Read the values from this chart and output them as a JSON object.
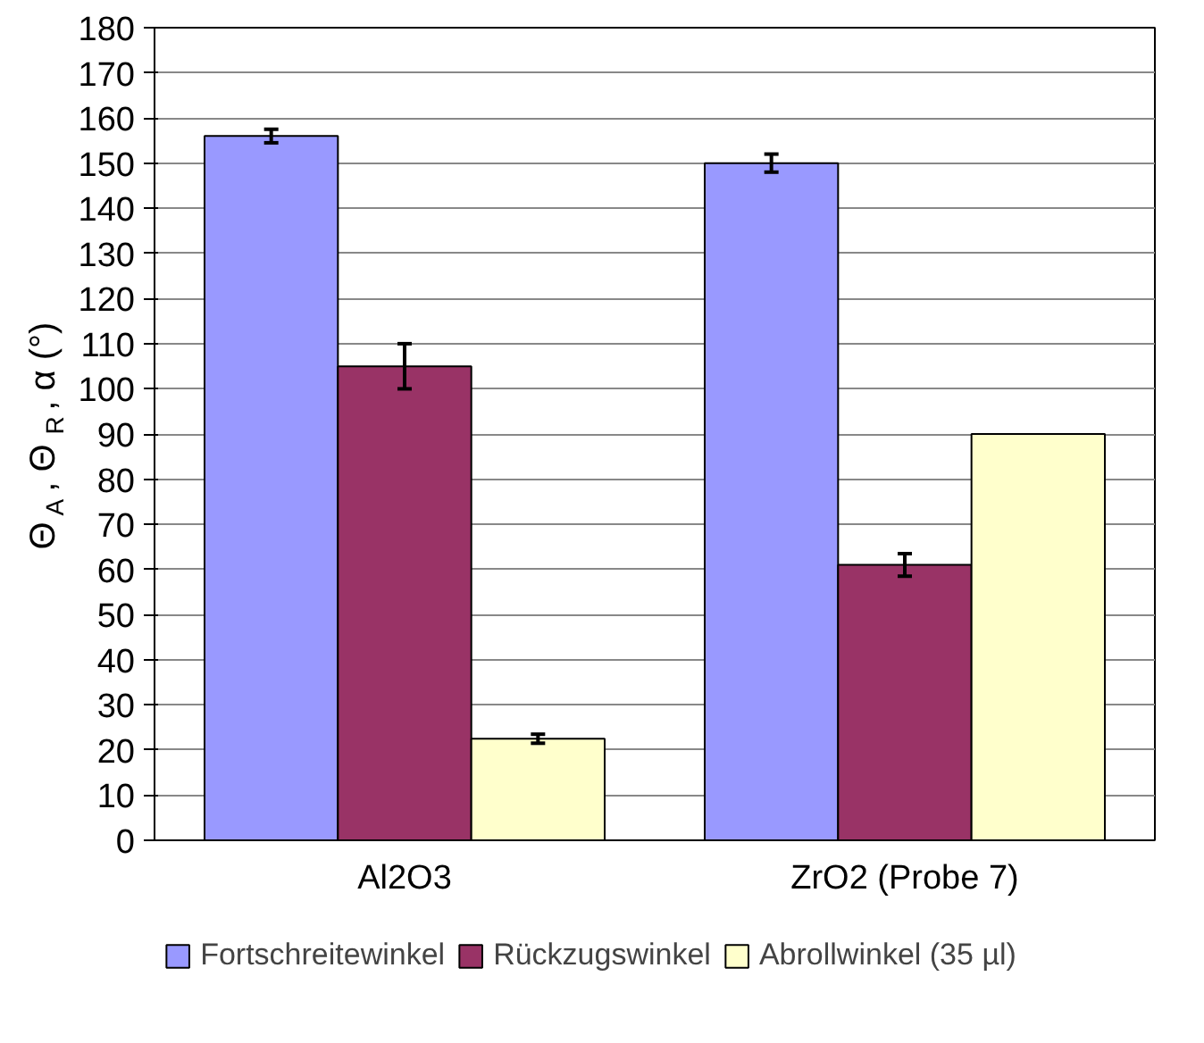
{
  "chart_data": {
    "type": "bar",
    "ylabel": "Θ$_{A}$, Θ$_{R}$, α (°)",
    "categories": [
      "Al2O3",
      "ZrO2 (Probe 7)"
    ],
    "series": [
      {
        "name": "Fortschreitewinkel",
        "color": "#9999ff",
        "values": [
          156,
          150
        ],
        "errors": [
          1.5,
          2
        ]
      },
      {
        "name": "Rückzugswinkel",
        "color": "#993366",
        "values": [
          105,
          61
        ],
        "errors": [
          5,
          2.5
        ]
      },
      {
        "name": "Abrollwinkel (35 µl)",
        "color": "#ffffcc",
        "values": [
          22.5,
          90
        ],
        "errors": [
          1,
          null
        ]
      }
    ],
    "ylim": [
      0,
      180
    ],
    "yticks": [
      0,
      10,
      20,
      30,
      40,
      50,
      60,
      70,
      80,
      90,
      100,
      110,
      120,
      130,
      140,
      150,
      160,
      170,
      180
    ],
    "grid": "y",
    "legend": "bottom"
  }
}
